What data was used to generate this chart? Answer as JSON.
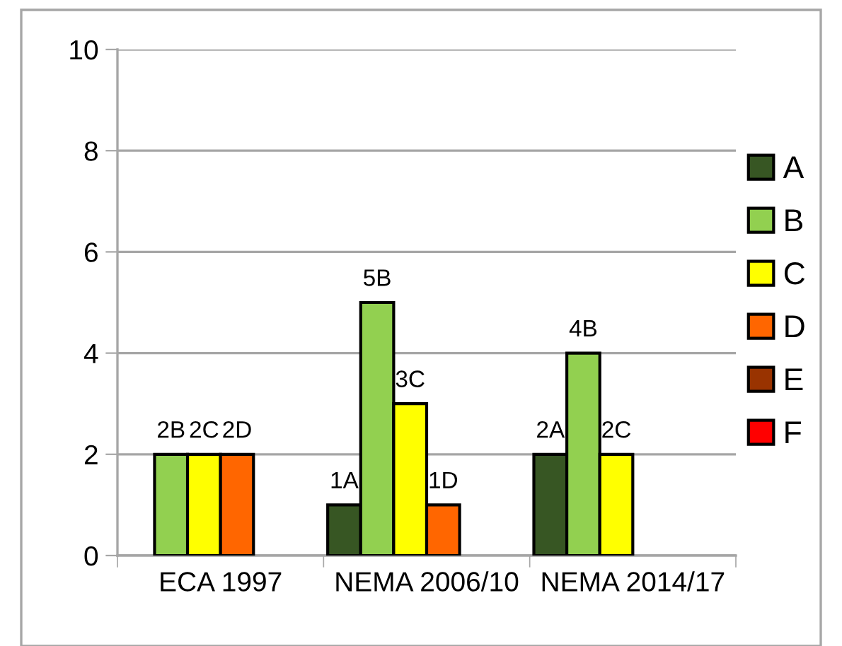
{
  "chart_data": {
    "type": "bar",
    "categories": [
      "ECA 1997",
      "NEMA 2006/10",
      "NEMA 2014/17"
    ],
    "series": [
      {
        "name": "A",
        "color": "#375623",
        "values": [
          null,
          1,
          2
        ],
        "value_labels": [
          null,
          "1A",
          "2A"
        ]
      },
      {
        "name": "B",
        "color": "#92d050",
        "values": [
          2,
          5,
          4
        ],
        "value_labels": [
          "2B",
          "5B",
          "4B"
        ]
      },
      {
        "name": "C",
        "color": "#ffff00",
        "values": [
          2,
          3,
          2
        ],
        "value_labels": [
          "2C",
          "3C",
          "2C"
        ]
      },
      {
        "name": "D",
        "color": "#ff6600",
        "values": [
          2,
          1,
          null
        ],
        "value_labels": [
          "2D",
          "1D",
          null
        ]
      },
      {
        "name": "E",
        "color": "#993300",
        "values": [
          null,
          null,
          null
        ]
      },
      {
        "name": "F",
        "color": "#ff0000",
        "values": [
          null,
          null,
          null
        ]
      }
    ],
    "ylim": [
      0,
      10
    ],
    "yticks": [
      0,
      2,
      4,
      6,
      8,
      10
    ],
    "grid": "y",
    "legend": "right"
  }
}
